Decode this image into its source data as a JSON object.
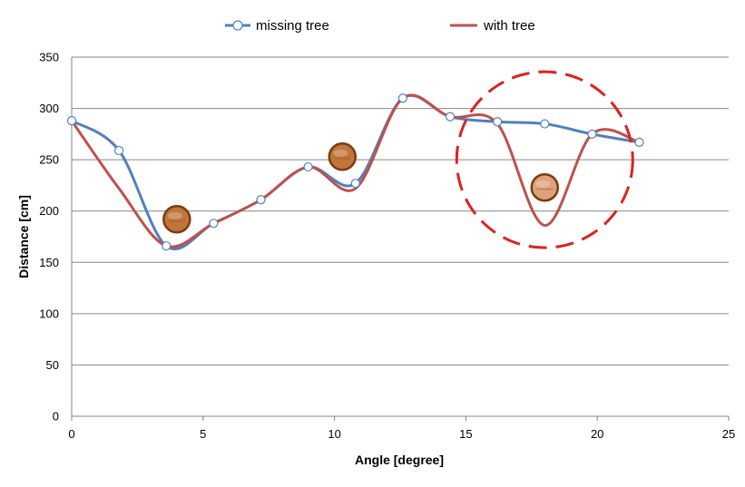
{
  "chart_data": {
    "type": "line",
    "xlabel": "Angle [degree]",
    "ylabel": "Distance [cm]",
    "xlim": [
      0,
      25
    ],
    "ylim": [
      0,
      350
    ],
    "xticks": [
      0,
      5,
      10,
      15,
      20,
      25
    ],
    "yticks": [
      0,
      50,
      100,
      150,
      200,
      250,
      300,
      350
    ],
    "grid": "horizontal",
    "legend_position": "top",
    "series": [
      {
        "name": "missing tree",
        "color": "#4f81bd",
        "marker": "open-circle",
        "x": [
          0,
          1.8,
          3.6,
          5.4,
          7.2,
          9.0,
          10.8,
          12.6,
          14.4,
          16.2,
          18.0,
          19.8,
          21.6
        ],
        "y": [
          288,
          259,
          166,
          188,
          211,
          243,
          227,
          310,
          292,
          287,
          285,
          275,
          267
        ]
      },
      {
        "name": "with tree",
        "color": "#c0504d",
        "marker": "none",
        "x": [
          0,
          1.8,
          3.6,
          5.4,
          7.2,
          9.0,
          10.8,
          12.6,
          14.4,
          16.2,
          18.0,
          19.8,
          21.6
        ],
        "y": [
          288,
          222,
          166,
          188,
          211,
          243,
          222,
          310,
          292,
          285,
          186,
          275,
          267
        ]
      }
    ],
    "annotations": {
      "tree_icons": [
        {
          "x": 4.0,
          "y": 192,
          "color": "#c0763a"
        },
        {
          "x": 10.3,
          "y": 253,
          "color": "#c0763a"
        },
        {
          "x": 18.0,
          "y": 223,
          "color": "#dea17a"
        }
      ],
      "highlight_circle": {
        "cx": 18.0,
        "cy": 250,
        "color": "#e02020",
        "style": "dashed"
      }
    }
  }
}
